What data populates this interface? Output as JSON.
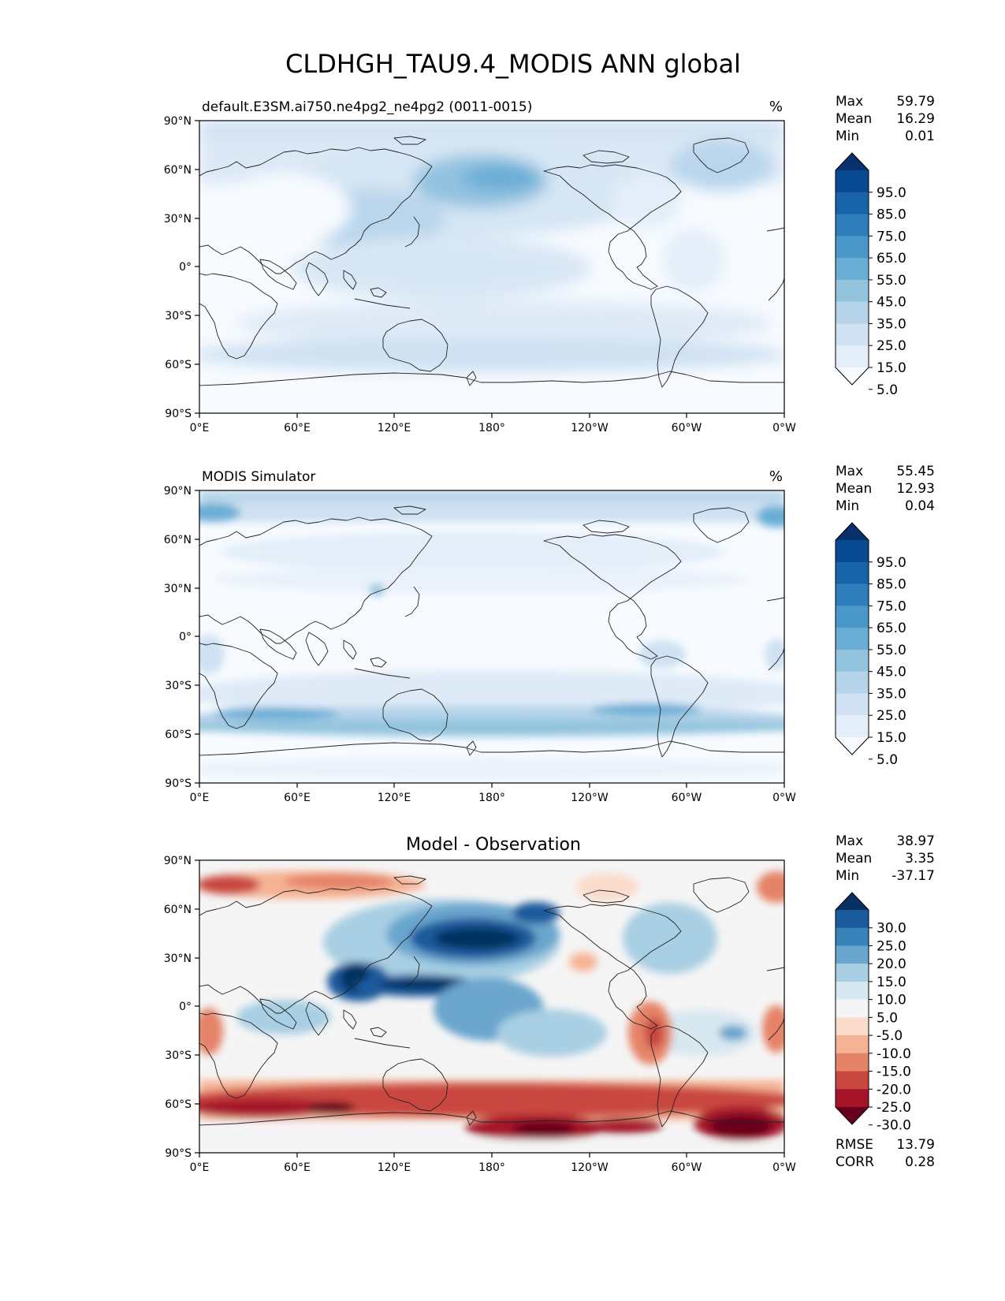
{
  "title": "CLDHGH_TAU9.4_MODIS ANN global",
  "lon_ticks": [
    "0°E",
    "60°E",
    "120°E",
    "180°",
    "120°W",
    "60°W",
    "0°W"
  ],
  "lat_ticks": [
    "90°N",
    "60°N",
    "30°N",
    "0°",
    "30°S",
    "60°S",
    "90°S"
  ],
  "panels": [
    {
      "left_title": "default.E3SM.ai750.ne4pg2_ne4pg2 (0011-0015)",
      "center_title": "",
      "units": "%",
      "stats": [
        {
          "label": "Max",
          "value": "59.79"
        },
        {
          "label": "Mean",
          "value": "16.29"
        },
        {
          "label": "Min",
          "value": "0.01"
        }
      ],
      "colorbar": {
        "labels": [
          "95.0",
          "85.0",
          "75.0",
          "65.0",
          "55.0",
          "45.0",
          "35.0",
          "25.0",
          "15.0",
          "5.0"
        ],
        "colors": [
          "#f7fbff",
          "#e3eef9",
          "#cfe1f2",
          "#b5d4e9",
          "#93c4de",
          "#6aaed6",
          "#4a98c9",
          "#2e7ebc",
          "#1764ab",
          "#084a91",
          "#08306b"
        ]
      },
      "extra_stats": []
    },
    {
      "left_title": "MODIS Simulator",
      "center_title": "",
      "units": "%",
      "stats": [
        {
          "label": "Max",
          "value": "55.45"
        },
        {
          "label": "Mean",
          "value": "12.93"
        },
        {
          "label": "Min",
          "value": "0.04"
        }
      ],
      "colorbar": {
        "labels": [
          "95.0",
          "85.0",
          "75.0",
          "65.0",
          "55.0",
          "45.0",
          "35.0",
          "25.0",
          "15.0",
          "5.0"
        ],
        "colors": [
          "#f7fbff",
          "#e3eef9",
          "#cfe1f2",
          "#b5d4e9",
          "#93c4de",
          "#6aaed6",
          "#4a98c9",
          "#2e7ebc",
          "#1764ab",
          "#084a91",
          "#08306b"
        ]
      },
      "extra_stats": []
    },
    {
      "left_title": "",
      "center_title": "Model - Observation",
      "units": "",
      "stats": [
        {
          "label": "Max",
          "value": "38.97"
        },
        {
          "label": "Mean",
          "value": "3.35"
        },
        {
          "label": "Min",
          "value": "-37.17"
        }
      ],
      "colorbar": {
        "labels": [
          "30.0",
          "25.0",
          "20.0",
          "15.0",
          "10.0",
          "5.0",
          "-5.0",
          "-10.0",
          "-15.0",
          "-20.0",
          "-25.0",
          "-30.0"
        ],
        "colors": [
          "#67001f",
          "#a51429",
          "#c94741",
          "#e58368",
          "#f6b394",
          "#fbdccb",
          "#f5f5f5",
          "#d8e8f1",
          "#a8cfe3",
          "#6aa6cd",
          "#3784bb",
          "#1b5a9c",
          "#053061"
        ]
      },
      "extra_stats": [
        {
          "label": "RMSE",
          "value": "13.79"
        },
        {
          "label": "CORR",
          "value": "0.28"
        }
      ]
    }
  ]
}
